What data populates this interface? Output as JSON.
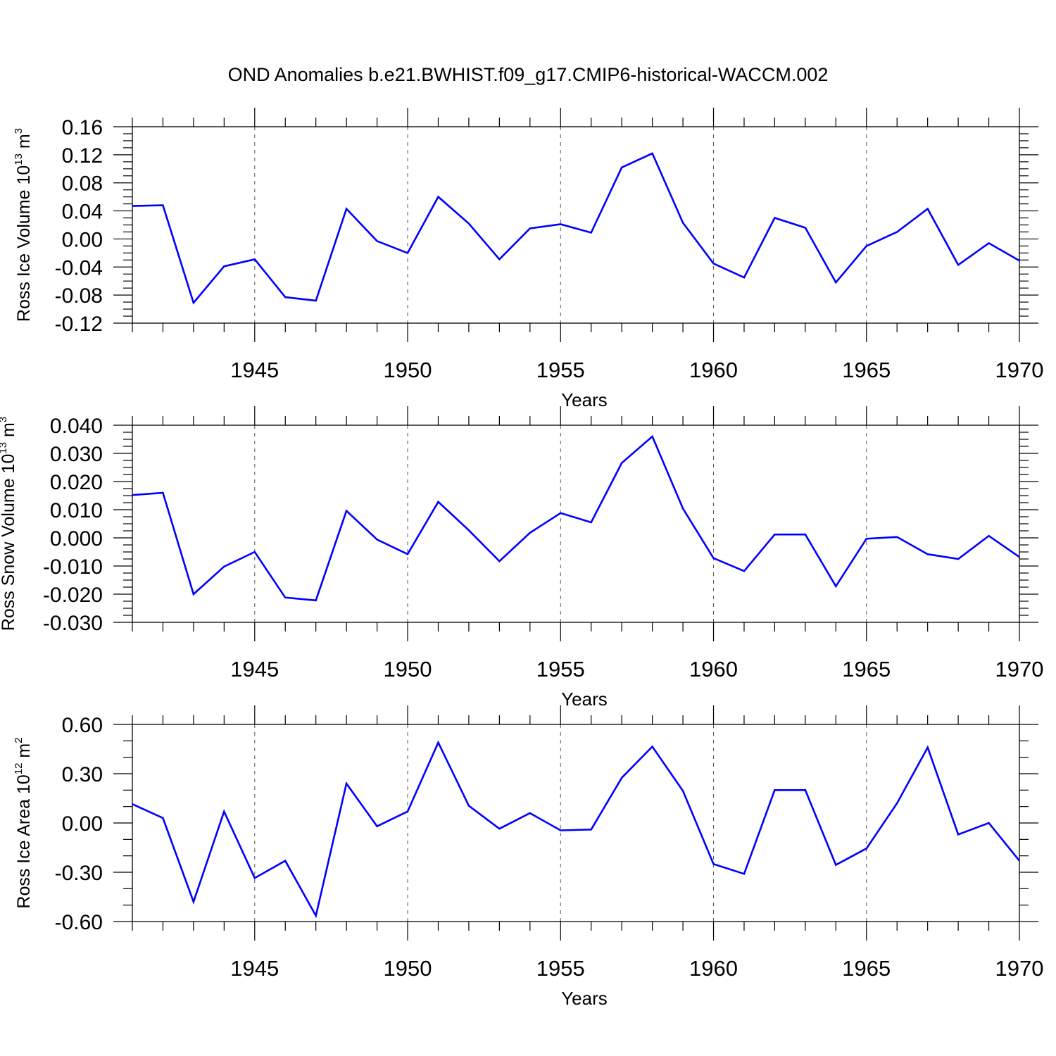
{
  "figure": {
    "title": "OND Anomalies b.e21.BWHIST.f09_g17.CMIP6-historical-WACCM.002",
    "line_color": "#0000ff",
    "grid_color": "#555555"
  },
  "chart_data": [
    {
      "type": "line",
      "ylabel": "Ross Ice Volume 10",
      "ylabel_exp": "13",
      "ylabel_unit": " m",
      "ylabel_unit_exp": "3",
      "xlabel": "Years",
      "xlim": [
        1941,
        1970
      ],
      "ylim": [
        -0.12,
        0.16
      ],
      "yticks": [
        -0.12,
        -0.08,
        -0.04,
        0.0,
        0.04,
        0.08,
        0.12,
        0.16
      ],
      "ytick_labels": [
        "-0.12",
        "-0.08",
        "-0.04",
        "0.00",
        "0.04",
        "0.08",
        "0.12",
        "0.16"
      ],
      "yminor_step": 0.01,
      "xticks": [
        1945,
        1950,
        1955,
        1960,
        1965,
        1970
      ],
      "xtick_labels": [
        "1945",
        "1950",
        "1955",
        "1960",
        "1965",
        "1970"
      ],
      "grid": "vertical dashed at major x ticks",
      "x": [
        1941,
        1942,
        1943,
        1944,
        1945,
        1946,
        1947,
        1948,
        1949,
        1950,
        1951,
        1952,
        1953,
        1954,
        1955,
        1956,
        1957,
        1958,
        1959,
        1960,
        1961,
        1962,
        1963,
        1964,
        1965,
        1966,
        1967,
        1968,
        1969,
        1970
      ],
      "series": [
        {
          "values": [
            0.047,
            0.048,
            -0.091,
            -0.039,
            -0.029,
            -0.083,
            -0.088,
            0.043,
            -0.003,
            -0.02,
            0.06,
            0.022,
            -0.029,
            0.015,
            0.021,
            0.009,
            0.102,
            0.122,
            0.023,
            -0.035,
            -0.055,
            0.03,
            0.016,
            -0.062,
            -0.01,
            0.01,
            0.043,
            -0.037,
            -0.006,
            -0.031
          ]
        }
      ]
    },
    {
      "type": "line",
      "ylabel": "Ross Snow Volume 10",
      "ylabel_exp": "13",
      "ylabel_unit": " m",
      "ylabel_unit_exp": "3",
      "xlabel": "Years",
      "xlim": [
        1941,
        1970
      ],
      "ylim": [
        -0.03,
        0.04
      ],
      "yticks": [
        -0.03,
        -0.02,
        -0.01,
        0.0,
        0.01,
        0.02,
        0.03,
        0.04
      ],
      "ytick_labels": [
        "-0.030",
        "-0.020",
        "-0.010",
        "0.000",
        "0.010",
        "0.020",
        "0.030",
        "0.040"
      ],
      "yminor_step": 0.0025,
      "xticks": [
        1945,
        1950,
        1955,
        1960,
        1965,
        1970
      ],
      "xtick_labels": [
        "1945",
        "1950",
        "1955",
        "1960",
        "1965",
        "1970"
      ],
      "grid": "vertical dashed at major x ticks",
      "x": [
        1941,
        1942,
        1943,
        1944,
        1945,
        1946,
        1947,
        1948,
        1949,
        1950,
        1951,
        1952,
        1953,
        1954,
        1955,
        1956,
        1957,
        1958,
        1959,
        1960,
        1961,
        1962,
        1963,
        1964,
        1965,
        1966,
        1967,
        1968,
        1969,
        1970
      ],
      "series": [
        {
          "values": [
            0.0152,
            0.016,
            -0.02,
            -0.0102,
            -0.005,
            -0.0212,
            -0.0222,
            0.0096,
            -0.0006,
            -0.0058,
            0.0128,
            0.0027,
            -0.0083,
            0.0018,
            0.0088,
            0.0055,
            0.0266,
            0.036,
            0.0104,
            -0.0072,
            -0.0118,
            0.0012,
            0.0012,
            -0.0172,
            -0.0003,
            0.0003,
            -0.0058,
            -0.0075,
            0.0007,
            -0.0068
          ]
        }
      ]
    },
    {
      "type": "line",
      "ylabel": "Ross Ice Area 10",
      "ylabel_exp": "12",
      "ylabel_unit": " m",
      "ylabel_unit_exp": "2",
      "xlabel": "Years",
      "xlim": [
        1941,
        1970
      ],
      "ylim": [
        -0.6,
        0.6
      ],
      "yticks": [
        -0.6,
        -0.3,
        0.0,
        0.3,
        0.6
      ],
      "ytick_labels": [
        "-0.60",
        "-0.30",
        "0.00",
        "0.30",
        "0.60"
      ],
      "yminor_step": 0.1,
      "xticks": [
        1945,
        1950,
        1955,
        1960,
        1965,
        1970
      ],
      "xtick_labels": [
        "1945",
        "1950",
        "1955",
        "1960",
        "1965",
        "1970"
      ],
      "grid": "vertical dashed at major x ticks",
      "x": [
        1941,
        1942,
        1943,
        1944,
        1945,
        1946,
        1947,
        1948,
        1949,
        1950,
        1951,
        1952,
        1953,
        1954,
        1955,
        1956,
        1957,
        1958,
        1959,
        1960,
        1961,
        1962,
        1963,
        1964,
        1965,
        1966,
        1967,
        1968,
        1969,
        1970
      ],
      "series": [
        {
          "values": [
            0.115,
            0.03,
            -0.48,
            0.07,
            -0.335,
            -0.23,
            -0.565,
            0.24,
            -0.02,
            0.07,
            0.49,
            0.105,
            -0.035,
            0.06,
            -0.045,
            -0.04,
            0.275,
            0.465,
            0.195,
            -0.25,
            -0.31,
            0.2,
            0.2,
            -0.255,
            -0.155,
            0.12,
            0.46,
            -0.07,
            0.0,
            -0.23
          ]
        }
      ]
    }
  ]
}
